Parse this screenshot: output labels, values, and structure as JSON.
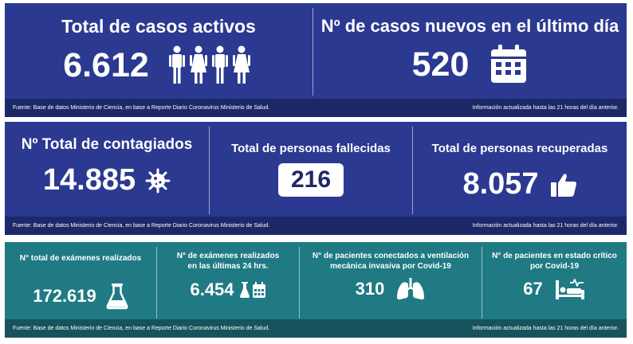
{
  "row1": {
    "active": {
      "title": "Total de casos activos",
      "value": "6.612",
      "icon": "people-icon"
    },
    "new_cases": {
      "title": "Nº de casos nuevos en el último día",
      "value": "520",
      "icon": "calendar-icon"
    },
    "source": "Fuente: Base de datos Ministerio de Ciencia, en base a Reporte Diario Coronavirus Ministerio de Salud.",
    "updated": "Información actualizada hasta las 21 horas  del día anterior."
  },
  "row2": {
    "infected": {
      "title": "Nº Total de contagiados",
      "value": "14.885",
      "icon": "virus-icon"
    },
    "deceased": {
      "title": "Total de personas fallecidas",
      "value": "216"
    },
    "recovered": {
      "title": "Total de personas recuperadas",
      "value": "8.057",
      "icon": "thumbs-up-icon"
    },
    "source": "Fuente: Base de datos Ministerio de Ciencia, en base a Reporte Diario Coronavirus Ministerio de Salud.",
    "updated": "Información actualizada hasta las 21 horas  del día anterior."
  },
  "row3": {
    "exams_total": {
      "title": "N° total de exámenes realizados",
      "value": "172.619",
      "icon": "flask-icon"
    },
    "exams_24h": {
      "title_line1": "N° de exámenes realizados",
      "title_line2": "en las últimas 24 hrs.",
      "value": "6.454",
      "icon": "flask-calendar-icon"
    },
    "ventilated": {
      "title_line1": "N° de pacientes conectados a ventilación",
      "title_line2": "mecánica invasiva por Covid-19",
      "value": "310",
      "icon": "lungs-icon"
    },
    "critical": {
      "title_line1": "N° de pacientes en estado crítico",
      "title_line2": "por Covid-19",
      "value": "67",
      "icon": "hospital-bed-icon"
    },
    "source": "Fuente: Base de datos Ministerio de Ciencia, en base a Reporte Diario Coronavirus Ministerio de Salud.",
    "updated": "Información actualizada hasta las 21 horas  del día anterior."
  },
  "colors": {
    "blue": "#2b3990",
    "blue_footer": "#1c2868",
    "teal": "#1f7a84",
    "teal_footer": "#16535c"
  }
}
